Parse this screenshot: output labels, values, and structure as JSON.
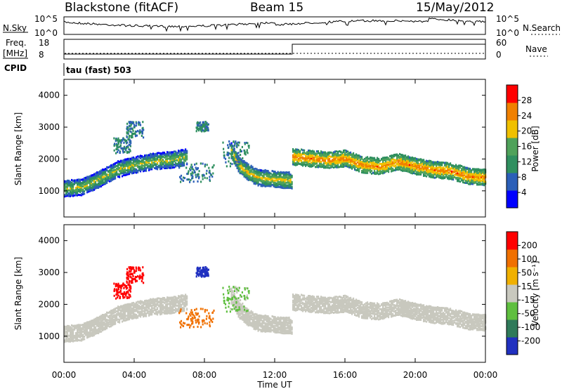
{
  "header": {
    "station": "Blackstone (fitACF)",
    "beam": "Beam 15",
    "date": "15/May/2012"
  },
  "top_panels": {
    "nsky_label": "N.Sky",
    "nsky_ticks": [
      "10^5",
      "10^0"
    ],
    "nsearch_label": "N.Search",
    "nsearch_ticks": [
      "10^5",
      "10^0"
    ],
    "freq_label": "Freq.",
    "freq_unit": "[MHz]",
    "freq_ticks": [
      "18",
      "8"
    ],
    "nave_label": "Nave",
    "nave_ticks": [
      "60",
      "0"
    ],
    "cpid_label": "CPID",
    "cpid_value": "tau (fast) 503"
  },
  "colorbars": {
    "power": {
      "label": "Power [dB]",
      "ticks": [
        "28",
        "24",
        "20",
        "16",
        "12",
        "8",
        "4"
      ],
      "colors": [
        "#0000ff",
        "#2b5fb8",
        "#2f8f5f",
        "#4fa25a",
        "#f0c000",
        "#f08000",
        "#ff0000"
      ]
    },
    "velocity": {
      "label": "Velocity [m s⁻¹]",
      "ticks": [
        "200",
        "100",
        "50",
        "15",
        "-15",
        "-50",
        "-100",
        "-200"
      ],
      "colors": [
        "#2030c0",
        "#2f7a5a",
        "#5fbf3f",
        "#c8c8be",
        "#f0b000",
        "#f07000",
        "#ff0000"
      ]
    }
  },
  "axes": {
    "xlabel": "Time UT",
    "ylabel": "Slant Range [km]"
  },
  "chart_data": {
    "type": "heatmap",
    "x_ticks": [
      "00:00",
      "04:00",
      "08:00",
      "12:00",
      "16:00",
      "20:00",
      "00:00"
    ],
    "y_ticks": [
      1000,
      2000,
      3000,
      4000
    ],
    "xlim_hours": [
      0,
      24
    ],
    "ylim_km": [
      180,
      4500
    ],
    "frequency_step": {
      "before_hour": 13,
      "after_hour": 13,
      "low_mhz": 10.5,
      "high_mhz": 15.5
    },
    "power_bands": [
      {
        "t": [
          0,
          1,
          2,
          3,
          4,
          5,
          6,
          7
        ],
        "range": [
          1100,
          1150,
          1400,
          1700,
          1850,
          1950,
          2000,
          2100
        ],
        "power": 18
      },
      {
        "t": [
          9.5,
          10,
          10.5,
          11,
          12,
          13
        ],
        "range": [
          2300,
          1800,
          1600,
          1450,
          1400,
          1350
        ],
        "power": 20
      },
      {
        "t": [
          13,
          14,
          15,
          16,
          17,
          18,
          19,
          20,
          21,
          22,
          23,
          24
        ],
        "range": [
          2100,
          2050,
          2000,
          2050,
          1850,
          1800,
          1950,
          1800,
          1700,
          1650,
          1500,
          1450
        ],
        "power": 24
      }
    ],
    "velocity_regions": [
      {
        "t_range": [
          3.5,
          4.5
        ],
        "range_km": [
          2700,
          3200
        ],
        "velocity": -150
      },
      {
        "t_range": [
          2.8,
          3.8
        ],
        "range_km": [
          2200,
          2700
        ],
        "velocity": -150
      },
      {
        "t_range": [
          6.5,
          8.5
        ],
        "range_km": [
          1300,
          1900
        ],
        "velocity": -80
      },
      {
        "t_range": [
          7.5,
          8.2
        ],
        "range_km": [
          2900,
          3200
        ],
        "velocity": 200
      },
      {
        "t_range": [
          9,
          10.5
        ],
        "range_km": [
          1800,
          2600
        ],
        "velocity": 30
      }
    ]
  }
}
